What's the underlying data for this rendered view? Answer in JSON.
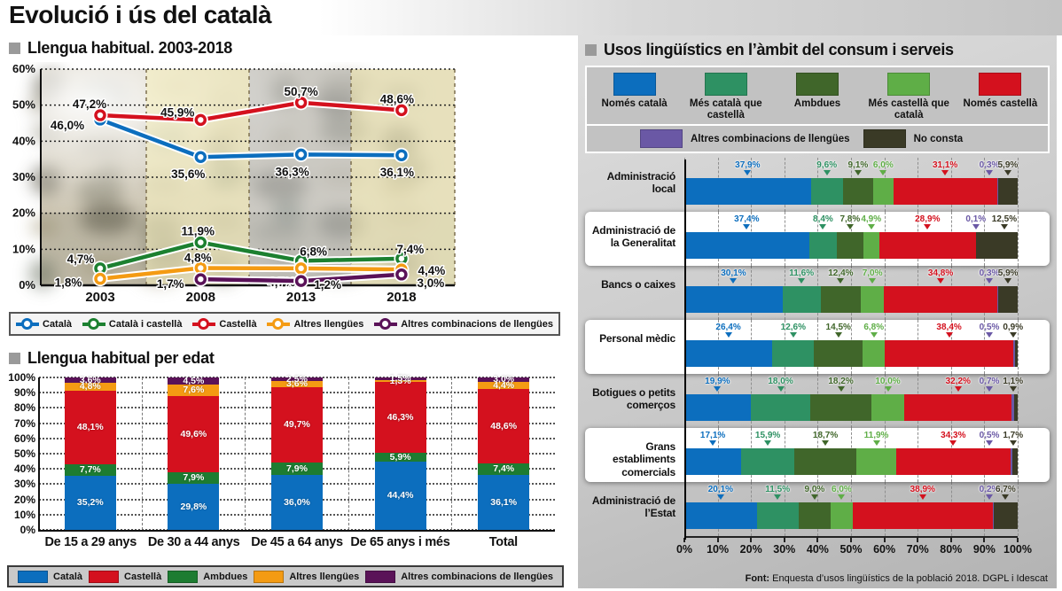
{
  "title": "Evolució i ús del català",
  "sections": {
    "habitual": {
      "heading": "Llengua habitual. 2003-2018"
    },
    "per_edat": {
      "heading": "Llengua habitual per edat"
    },
    "consum": {
      "heading": "Usos lingüístics en l’àmbit del consum i serveis"
    }
  },
  "source": {
    "label": "Font:",
    "text": "Enquesta d’usos lingüístics de la població 2018. DGPL i Idescat"
  },
  "colors": {
    "catala_blue": "#0c6ebe",
    "castella_red": "#d4111e",
    "ambdues_green": "#1d7c31",
    "altres_orange": "#f49b13",
    "combinacions_plum": "#5a1258",
    "mes_catala_teal": "#2e9163",
    "ambdues_darkgreen": "#40662a",
    "mes_castella_lightgreen": "#5fae47",
    "combinacions_purple": "#6a58a5",
    "no_consta_olive": "#3a3a26",
    "band_yellow": "#f5efc0",
    "panel_gray": "#c9c9c9"
  },
  "chart_data": [
    {
      "type": "line",
      "title": "Llengua habitual. 2003-2018",
      "x": [
        2003,
        2008,
        2013,
        2018
      ],
      "ylim": [
        0,
        60
      ],
      "ytick_step": 10,
      "grid": "dotted-horizontal",
      "legend_position": "bottom",
      "series": [
        {
          "name": "Català",
          "color": "#0c6ebe",
          "values": [
            46.0,
            35.6,
            36.3,
            36.1
          ],
          "label_offsets": [
            [
              -37,
              7
            ],
            [
              -14,
              20
            ],
            [
              -10,
              20
            ],
            [
              -5,
              20
            ]
          ]
        },
        {
          "name": "Català i castellà",
          "color": "#1c8030",
          "values": [
            4.7,
            11.9,
            6.8,
            7.4
          ],
          "label_offsets": [
            [
              -22,
              -10
            ],
            [
              -3,
              -12
            ],
            [
              14,
              -10
            ],
            [
              10,
              -10
            ]
          ]
        },
        {
          "name": "Castellà",
          "color": "#d4111e",
          "values": [
            47.2,
            45.9,
            50.7,
            48.6
          ],
          "label_offsets": [
            [
              -12,
              -12
            ],
            [
              -26,
              -8
            ],
            [
              0,
              -12
            ],
            [
              -5,
              -12
            ]
          ]
        },
        {
          "name": "Altres llengües",
          "color": "#f49b13",
          "values": [
            1.8,
            4.8,
            4.7,
            4.4
          ],
          "label_offsets": [
            [
              -36,
              5
            ],
            [
              -3,
              -11
            ],
            [
              -22,
              16
            ],
            [
              34,
              2
            ]
          ]
        },
        {
          "name": "Altres combinacions de llengües",
          "color": "#5a1258",
          "values": [
            null,
            1.7,
            1.2,
            3.0
          ],
          "label_offsets": [
            [
              0,
              0
            ],
            [
              -34,
              6
            ],
            [
              30,
              5
            ],
            [
              33,
              10
            ]
          ]
        }
      ]
    },
    {
      "type": "bar",
      "stacked": true,
      "title": "Llengua habitual per edat",
      "ylim": [
        0,
        100
      ],
      "ytick_step": 10,
      "categories": [
        "De 15 a 29 anys",
        "De 30 a 44 anys",
        "De 45 a 64 anys",
        "De 65 anys i més",
        "Total"
      ],
      "series": [
        {
          "name": "Català",
          "color": "#0c6ebe",
          "values": [
            35.2,
            29.8,
            36.0,
            44.4,
            36.1
          ]
        },
        {
          "name": "Ambdues",
          "color": "#1d7c31",
          "values": [
            7.7,
            7.9,
            7.9,
            5.9,
            7.4
          ]
        },
        {
          "name": "Castellà",
          "color": "#d4111e",
          "values": [
            48.1,
            49.6,
            49.7,
            46.3,
            48.6
          ]
        },
        {
          "name": "Altres llengües",
          "color": "#f49b13",
          "values": [
            4.8,
            7.6,
            3.6,
            1.3,
            4.4
          ]
        },
        {
          "name": "Altres combinacions de llengües",
          "color": "#5a1258",
          "values": [
            3.6,
            4.5,
            2.5,
            1.5,
            3.0
          ]
        }
      ],
      "legend_order": [
        "Català",
        "Castellà",
        "Ambdues",
        "Altres llengües",
        "Altres combinacions de llengües"
      ]
    },
    {
      "type": "bar",
      "orientation": "horizontal",
      "stacked": true,
      "title": "Usos lingüístics en l’àmbit del consum i serveis",
      "xlim": [
        0,
        100
      ],
      "xtick_step": 10,
      "categories": [
        "Administració local",
        "Administració de la Generalitat",
        "Bancs o caixes",
        "Personal mèdic",
        "Botigues o petits comerços",
        "Grans establiments comercials",
        "Administració de l’Estat"
      ],
      "highlighted_rows": [
        1,
        3,
        5
      ],
      "series": [
        {
          "name": "Només català",
          "color": "#0c6ebe",
          "values": [
            37.9,
            37.4,
            30.1,
            26.4,
            19.9,
            17.1,
            20.1
          ]
        },
        {
          "name": "Més català que castellà",
          "color": "#2e9163",
          "values": [
            9.6,
            8.4,
            11.6,
            12.6,
            18.0,
            15.9,
            11.5
          ]
        },
        {
          "name": "Ambdues",
          "color": "#40662a",
          "values": [
            9.1,
            7.8,
            12.4,
            14.5,
            18.2,
            18.7,
            9.0
          ]
        },
        {
          "name": "Més castellà que català",
          "color": "#5fae47",
          "values": [
            6.0,
            4.9,
            7.0,
            6.8,
            10.0,
            11.9,
            6.0
          ]
        },
        {
          "name": "Només castellà",
          "color": "#d4111e",
          "values": [
            31.1,
            28.9,
            34.8,
            38.4,
            32.2,
            34.3,
            38.9
          ]
        },
        {
          "name": "Altres combinacions de llengües",
          "color": "#6a58a5",
          "values": [
            0.3,
            0.1,
            0.3,
            0.5,
            0.7,
            0.5,
            0.2
          ]
        },
        {
          "name": "No consta",
          "color": "#3a3a26",
          "values": [
            5.9,
            12.5,
            5.9,
            0.9,
            1.1,
            1.7,
            6.7
          ]
        }
      ]
    }
  ]
}
